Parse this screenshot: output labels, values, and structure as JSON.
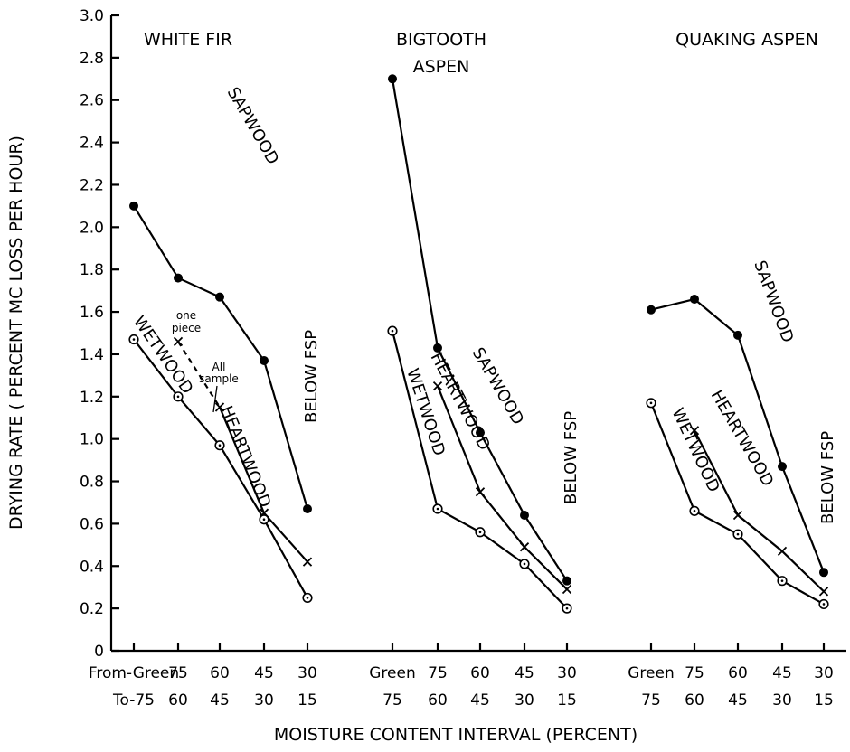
{
  "chart_data": {
    "type": "line",
    "ylabel": "DRYING RATE ( PERCENT MC LOSS PER HOUR)",
    "xlabel": "MOISTURE CONTENT INTERVAL (PERCENT)",
    "ylim": [
      0,
      3.0
    ],
    "yticks": [
      "0",
      "0.2",
      "0.4",
      "0.6",
      "0.8",
      "1.0",
      "1.2",
      "1.4",
      "1.6",
      "1.8",
      "2.0",
      "2.2",
      "2.4",
      "2.6",
      "2.8",
      "3.0"
    ],
    "grid": false,
    "below_fsp_label": "BELOW FSP",
    "panels": [
      {
        "title": [
          "WHITE FIR"
        ],
        "from_labels": [
          "From-Green",
          "75",
          "60",
          "45",
          "30"
        ],
        "to_labels": [
          "To-75",
          "60",
          "45",
          "30",
          "15"
        ],
        "series": [
          {
            "name": "SAPWOOD",
            "marker": "filled-circle",
            "values": [
              2.1,
              1.76,
              1.67,
              1.37,
              0.67
            ]
          },
          {
            "name": "HEARTWOOD",
            "marker": "x",
            "values": [
              null,
              1.46,
              1.15,
              0.65,
              0.42
            ]
          },
          {
            "name": "WETWOOD",
            "marker": "dotted-circle",
            "values": [
              1.47,
              1.2,
              0.97,
              0.62,
              0.25
            ]
          }
        ],
        "annotations": {
          "one_piece": [
            "one",
            "piece"
          ],
          "all_sample": [
            "All",
            "sample"
          ]
        }
      },
      {
        "title": [
          "BIGTOOTH",
          "ASPEN"
        ],
        "from_labels": [
          "Green",
          "75",
          "60",
          "45",
          "30"
        ],
        "to_labels": [
          "75",
          "60",
          "45",
          "30",
          "15"
        ],
        "series": [
          {
            "name": "SAPWOOD",
            "marker": "filled-circle",
            "values": [
              2.7,
              1.43,
              1.03,
              0.64,
              0.33
            ]
          },
          {
            "name": "HEARTWOOD",
            "marker": "x",
            "values": [
              null,
              1.25,
              0.75,
              0.49,
              0.29
            ]
          },
          {
            "name": "WETWOOD",
            "marker": "dotted-circle",
            "values": [
              1.51,
              0.67,
              0.56,
              0.41,
              0.2
            ]
          }
        ]
      },
      {
        "title": [
          "QUAKING ASPEN"
        ],
        "from_labels": [
          "Green",
          "75",
          "60",
          "45",
          "30"
        ],
        "to_labels": [
          "75",
          "60",
          "45",
          "30",
          "15"
        ],
        "series": [
          {
            "name": "SAPWOOD",
            "marker": "filled-circle",
            "values": [
              1.61,
              1.66,
              1.49,
              0.87,
              0.37
            ]
          },
          {
            "name": "HEARTWOOD",
            "marker": "x",
            "values": [
              null,
              1.04,
              0.64,
              0.47,
              0.28
            ]
          },
          {
            "name": "WETWOOD",
            "marker": "dotted-circle",
            "values": [
              1.17,
              0.66,
              0.55,
              0.33,
              0.22
            ]
          }
        ]
      }
    ]
  }
}
